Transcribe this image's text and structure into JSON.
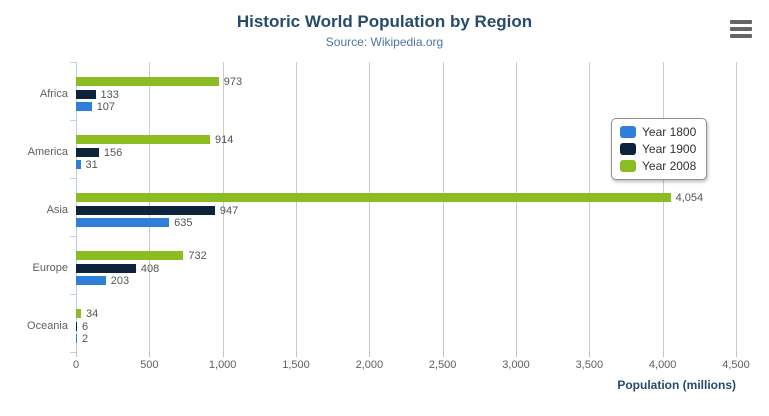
{
  "chart_data": {
    "type": "bar",
    "title": "Historic World Population by Region",
    "subtitle": "Source: Wikipedia.org",
    "xlabel": "Population (millions)",
    "ylabel": "",
    "categories": [
      "Africa",
      "America",
      "Asia",
      "Europe",
      "Oceania"
    ],
    "series": [
      {
        "name": "Year 1800",
        "color": "#2f7ed8",
        "values": [
          107,
          31,
          635,
          203,
          2
        ]
      },
      {
        "name": "Year 1900",
        "color": "#0d233a",
        "values": [
          133,
          156,
          947,
          408,
          6
        ]
      },
      {
        "name": "Year 2008",
        "color": "#8bbc21",
        "values": [
          973,
          914,
          4054,
          732,
          34
        ]
      }
    ],
    "xlim": [
      0,
      4500
    ],
    "xticks": [
      0,
      500,
      1000,
      1500,
      2000,
      2500,
      3000,
      3500,
      4000,
      4500
    ],
    "grid": "vertical",
    "legend_position": "right",
    "bar_order_top_to_bottom": [
      "Year 2008",
      "Year 1900",
      "Year 1800"
    ],
    "colors": {
      "title": "#274b6d",
      "subtitle": "#4d759e",
      "axis_labels": "#606060",
      "data_labels": "#555555",
      "gridline": "#cccccc",
      "category_axis_line": "#c0d0e0",
      "legend_border": "#909090",
      "menu_icon": "#666666"
    },
    "icons": {
      "context_menu": "hamburger"
    }
  }
}
